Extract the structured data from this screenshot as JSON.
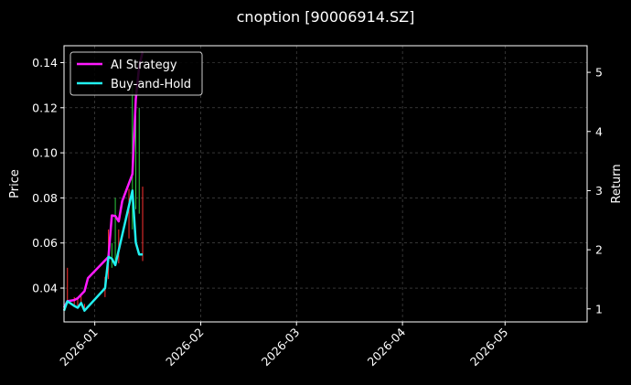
{
  "chart_data": {
    "type": "line",
    "title": "cnoption [90006914.SZ]",
    "left_axis": {
      "label": "Price",
      "ylim": [
        0.025,
        0.1475
      ],
      "ticks": [
        0.04,
        0.06,
        0.08,
        0.1,
        0.12,
        0.14
      ],
      "tick_labels": [
        "0.04",
        "0.06",
        "0.08",
        "0.10",
        "0.12",
        "0.14"
      ]
    },
    "right_axis": {
      "label": "Return",
      "ylim": [
        0.78,
        5.45
      ],
      "ticks": [
        1,
        2,
        3,
        4,
        5
      ],
      "tick_labels": [
        "1",
        "2",
        "3",
        "4",
        "5"
      ]
    },
    "x_axis": {
      "type": "date",
      "xlim": [
        "2025-12-23",
        "2026-05-25"
      ],
      "ticks": [
        "2026-01-01",
        "2026-02-01",
        "2026-03-01",
        "2026-04-01",
        "2026-05-01"
      ],
      "tick_labels": [
        "2026-01",
        "2026-02",
        "2026-03",
        "2026-04",
        "2026-05"
      ]
    },
    "grid": true,
    "legend_placement": "top-left",
    "series": [
      {
        "name": "AI Strategy",
        "axis": "right",
        "color": "#ff1aff",
        "points": [
          [
            "2025-12-23",
            1.02
          ],
          [
            "2025-12-24",
            1.13
          ],
          [
            "2025-12-26",
            1.15
          ],
          [
            "2025-12-27",
            1.18
          ],
          [
            "2025-12-29",
            1.3
          ],
          [
            "2025-12-30",
            1.52
          ],
          [
            "2026-01-05",
            1.88
          ],
          [
            "2026-01-06",
            2.58
          ],
          [
            "2026-01-07",
            2.57
          ],
          [
            "2026-01-08",
            2.48
          ],
          [
            "2026-01-09",
            2.82
          ],
          [
            "2026-01-12",
            3.28
          ],
          [
            "2026-01-13",
            4.55
          ],
          [
            "2026-01-14",
            5.1
          ],
          [
            "2026-01-15",
            5.35
          ]
        ]
      },
      {
        "name": "Buy-and-Hold",
        "axis": "right",
        "color": "#22f0f0",
        "points": [
          [
            "2025-12-23",
            0.97
          ],
          [
            "2025-12-24",
            1.13
          ],
          [
            "2025-12-26",
            1.05
          ],
          [
            "2025-12-27",
            1.02
          ],
          [
            "2025-12-28",
            1.1
          ],
          [
            "2025-12-29",
            0.97
          ],
          [
            "2026-01-04",
            1.35
          ],
          [
            "2026-01-05",
            1.88
          ],
          [
            "2026-01-06",
            1.85
          ],
          [
            "2026-01-07",
            1.74
          ],
          [
            "2026-01-12",
            3.0
          ],
          [
            "2026-01-13",
            2.12
          ],
          [
            "2026-01-14",
            1.92
          ],
          [
            "2026-01-15",
            1.92
          ]
        ]
      }
    ],
    "candles": [
      {
        "date": "2025-12-23",
        "low": 0.031,
        "high": 0.034,
        "color": "#ff3030"
      },
      {
        "date": "2025-12-24",
        "low": 0.033,
        "high": 0.049,
        "color": "#ff3030"
      },
      {
        "date": "2025-12-26",
        "low": 0.032,
        "high": 0.036,
        "color": "#ff3030"
      },
      {
        "date": "2025-12-27",
        "low": 0.032,
        "high": 0.035,
        "color": "#ff3030"
      },
      {
        "date": "2025-12-28",
        "low": 0.033,
        "high": 0.037,
        "color": "#ff3030"
      },
      {
        "date": "2025-12-29",
        "low": 0.031,
        "high": 0.033,
        "color": "#ff3030"
      },
      {
        "date": "2026-01-04",
        "low": 0.036,
        "high": 0.045,
        "color": "#ff3030"
      },
      {
        "date": "2026-01-05",
        "low": 0.044,
        "high": 0.066,
        "color": "#ff3030"
      },
      {
        "date": "2026-01-06",
        "low": 0.049,
        "high": 0.06,
        "color": "#2ecc40"
      },
      {
        "date": "2026-01-07",
        "low": 0.05,
        "high": 0.08,
        "color": "#2ecc40"
      },
      {
        "date": "2026-01-08",
        "low": 0.051,
        "high": 0.066,
        "color": "#ff3030"
      },
      {
        "date": "2026-01-11",
        "low": 0.062,
        "high": 0.084,
        "color": "#ff3030"
      },
      {
        "date": "2026-01-12",
        "low": 0.066,
        "high": 0.13,
        "color": "#2ecc40"
      },
      {
        "date": "2026-01-13",
        "low": 0.075,
        "high": 0.128,
        "color": "#2ecc40"
      },
      {
        "date": "2026-01-14",
        "low": 0.073,
        "high": 0.12,
        "color": "#2ecc40"
      },
      {
        "date": "2026-01-15",
        "low": 0.052,
        "high": 0.085,
        "color": "#ff3030"
      }
    ]
  }
}
